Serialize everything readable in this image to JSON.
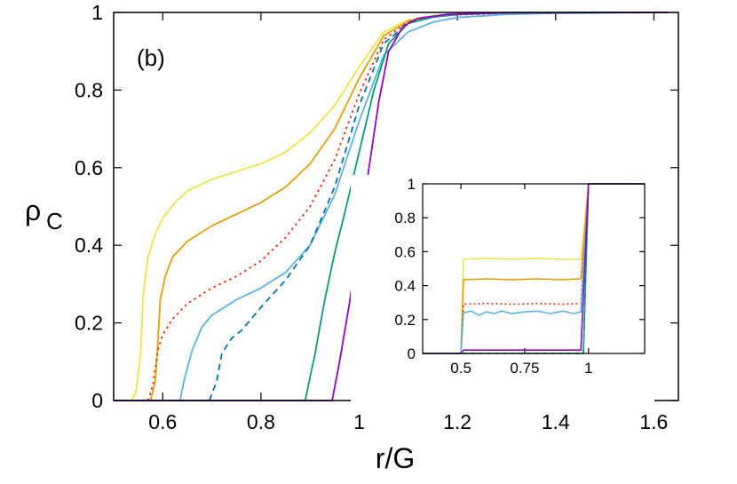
{
  "chart_data": [
    {
      "type": "line",
      "panel_label": "(b)",
      "xlabel": "r/G",
      "ylabel": "ρ",
      "ylabel_sub": "C",
      "xlim": [
        0.5,
        1.65
      ],
      "ylim": [
        0,
        1
      ],
      "xticks": [
        0.6,
        0.8,
        1,
        1.2,
        1.4,
        1.6
      ],
      "xtick_labels": [
        "0.6",
        "0.8",
        "1",
        "1.2",
        "1.4",
        "1.6"
      ],
      "yticks": [
        0,
        0.2,
        0.4,
        0.6,
        0.8,
        1
      ],
      "ytick_labels": [
        "0",
        "0.2",
        "0.4",
        "0.6",
        "0.8",
        "1"
      ],
      "grid": false,
      "series": [
        {
          "color": "#f0e442",
          "dash": "solid",
          "points": [
            [
              0.535,
              0
            ],
            [
              0.545,
              0.02
            ],
            [
              0.555,
              0.12
            ],
            [
              0.56,
              0.27
            ],
            [
              0.57,
              0.37
            ],
            [
              0.585,
              0.43
            ],
            [
              0.6,
              0.47
            ],
            [
              0.625,
              0.51
            ],
            [
              0.65,
              0.54
            ],
            [
              0.7,
              0.57
            ],
            [
              0.75,
              0.59
            ],
            [
              0.8,
              0.61
            ],
            [
              0.85,
              0.64
            ],
            [
              0.9,
              0.69
            ],
            [
              0.95,
              0.76
            ],
            [
              1.0,
              0.86
            ],
            [
              1.05,
              0.95
            ],
            [
              1.1,
              0.98
            ],
            [
              1.15,
              0.992
            ],
            [
              1.2,
              0.996
            ],
            [
              1.3,
              0.999
            ],
            [
              1.4,
              1
            ],
            [
              1.63,
              1
            ]
          ]
        },
        {
          "color": "#e69f00",
          "dash": "solid",
          "points": [
            [
              0.575,
              0
            ],
            [
              0.585,
              0.05
            ],
            [
              0.59,
              0.15
            ],
            [
              0.595,
              0.26
            ],
            [
              0.605,
              0.32
            ],
            [
              0.62,
              0.37
            ],
            [
              0.65,
              0.41
            ],
            [
              0.7,
              0.45
            ],
            [
              0.75,
              0.48
            ],
            [
              0.8,
              0.51
            ],
            [
              0.85,
              0.55
            ],
            [
              0.9,
              0.61
            ],
            [
              0.95,
              0.7
            ],
            [
              1.0,
              0.83
            ],
            [
              1.05,
              0.94
            ],
            [
              1.1,
              0.978
            ],
            [
              1.15,
              0.99
            ],
            [
              1.2,
              0.995
            ],
            [
              1.3,
              0.999
            ],
            [
              1.63,
              1
            ]
          ]
        },
        {
          "color": "#ff2200",
          "dash": "dotted",
          "points": [
            [
              0.57,
              0
            ],
            [
              0.58,
              0.04
            ],
            [
              0.59,
              0.13
            ],
            [
              0.6,
              0.17
            ],
            [
              0.62,
              0.21
            ],
            [
              0.65,
              0.25
            ],
            [
              0.7,
              0.29
            ],
            [
              0.75,
              0.32
            ],
            [
              0.8,
              0.36
            ],
            [
              0.85,
              0.42
            ],
            [
              0.9,
              0.5
            ],
            [
              0.95,
              0.62
            ],
            [
              1.0,
              0.79
            ],
            [
              1.05,
              0.93
            ],
            [
              1.1,
              0.975
            ],
            [
              1.15,
              0.988
            ],
            [
              1.2,
              0.994
            ],
            [
              1.3,
              0.998
            ],
            [
              1.63,
              1
            ]
          ]
        },
        {
          "color": "#56b4e9",
          "dash": "solid",
          "points": [
            [
              0.635,
              0
            ],
            [
              0.645,
              0.06
            ],
            [
              0.66,
              0.13
            ],
            [
              0.68,
              0.19
            ],
            [
              0.7,
              0.22
            ],
            [
              0.75,
              0.26
            ],
            [
              0.8,
              0.29
            ],
            [
              0.85,
              0.33
            ],
            [
              0.9,
              0.4
            ],
            [
              0.95,
              0.53
            ],
            [
              1.0,
              0.72
            ],
            [
              1.05,
              0.89
            ],
            [
              1.1,
              0.95
            ],
            [
              1.15,
              0.975
            ],
            [
              1.2,
              0.987
            ],
            [
              1.3,
              0.995
            ],
            [
              1.4,
              0.998
            ],
            [
              1.63,
              1
            ]
          ]
        },
        {
          "color": "#0072b2",
          "dash": "dashed",
          "points": [
            [
              0.695,
              0
            ],
            [
              0.71,
              0.05
            ],
            [
              0.72,
              0.12
            ],
            [
              0.74,
              0.16
            ],
            [
              0.76,
              0.18
            ],
            [
              0.8,
              0.24
            ],
            [
              0.85,
              0.31
            ],
            [
              0.9,
              0.4
            ],
            [
              0.95,
              0.55
            ],
            [
              1.0,
              0.76
            ],
            [
              1.05,
              0.92
            ],
            [
              1.1,
              0.972
            ],
            [
              1.15,
              0.988
            ],
            [
              1.2,
              0.995
            ],
            [
              1.3,
              0.999
            ],
            [
              1.63,
              1
            ]
          ]
        },
        {
          "color": "#009e73",
          "dash": "solid",
          "points": [
            [
              0.5,
              0
            ],
            [
              0.89,
              0
            ],
            [
              0.91,
              0.12
            ],
            [
              0.93,
              0.26
            ],
            [
              0.95,
              0.38
            ],
            [
              0.97,
              0.48
            ],
            [
              1.0,
              0.64
            ],
            [
              1.03,
              0.8
            ],
            [
              1.06,
              0.92
            ],
            [
              1.1,
              0.972
            ],
            [
              1.15,
              0.988
            ],
            [
              1.2,
              0.995
            ],
            [
              1.3,
              0.999
            ],
            [
              1.63,
              1
            ]
          ]
        },
        {
          "color": "#9400d3",
          "dash": "solid",
          "points": [
            [
              0.5,
              0
            ],
            [
              0.945,
              0
            ],
            [
              0.96,
              0.1
            ],
            [
              0.98,
              0.25
            ],
            [
              1.0,
              0.42
            ],
            [
              1.02,
              0.6
            ],
            [
              1.04,
              0.77
            ],
            [
              1.06,
              0.9
            ],
            [
              1.09,
              0.965
            ],
            [
              1.12,
              0.985
            ],
            [
              1.18,
              0.995
            ],
            [
              1.3,
              0.999
            ],
            [
              1.63,
              1
            ]
          ]
        }
      ]
    },
    {
      "type": "line",
      "role": "inset",
      "xlim": [
        0.35,
        1.22
      ],
      "ylim": [
        0,
        1
      ],
      "xticks": [
        0.5,
        0.75,
        1
      ],
      "xtick_labels": [
        "0.5",
        "0.75",
        "1"
      ],
      "yticks": [
        0,
        0.2,
        0.4,
        0.6,
        0.8,
        1
      ],
      "ytick_labels": [
        "0",
        "0.2",
        "0.4",
        "0.6",
        "0.8",
        "1"
      ],
      "grid": false,
      "series": [
        {
          "color": "#f0e442",
          "dash": "solid",
          "points": [
            [
              0.35,
              0
            ],
            [
              0.5,
              0
            ],
            [
              0.51,
              0.555
            ],
            [
              0.6,
              0.56
            ],
            [
              0.7,
              0.555
            ],
            [
              0.8,
              0.56
            ],
            [
              0.9,
              0.555
            ],
            [
              0.97,
              0.555
            ],
            [
              1.0,
              1
            ],
            [
              1.22,
              1
            ]
          ]
        },
        {
          "color": "#e69f00",
          "dash": "solid",
          "points": [
            [
              0.35,
              0
            ],
            [
              0.5,
              0
            ],
            [
              0.51,
              0.435
            ],
            [
              0.6,
              0.44
            ],
            [
              0.7,
              0.435
            ],
            [
              0.8,
              0.44
            ],
            [
              0.9,
              0.435
            ],
            [
              0.97,
              0.44
            ],
            [
              1.0,
              1
            ],
            [
              1.22,
              1
            ]
          ]
        },
        {
          "color": "#ff2200",
          "dash": "dotted",
          "points": [
            [
              0.35,
              0
            ],
            [
              0.5,
              0
            ],
            [
              0.51,
              0.29
            ],
            [
              0.6,
              0.295
            ],
            [
              0.7,
              0.29
            ],
            [
              0.8,
              0.295
            ],
            [
              0.9,
              0.29
            ],
            [
              0.97,
              0.295
            ],
            [
              1.0,
              1
            ],
            [
              1.22,
              1
            ]
          ]
        },
        {
          "color": "#56b4e9",
          "dash": "solid",
          "points": [
            [
              0.35,
              0
            ],
            [
              0.5,
              0
            ],
            [
              0.51,
              0.24
            ],
            [
              0.54,
              0.25
            ],
            [
              0.57,
              0.225
            ],
            [
              0.6,
              0.245
            ],
            [
              0.63,
              0.235
            ],
            [
              0.66,
              0.25
            ],
            [
              0.7,
              0.235
            ],
            [
              0.75,
              0.245
            ],
            [
              0.8,
              0.25
            ],
            [
              0.85,
              0.235
            ],
            [
              0.9,
              0.25
            ],
            [
              0.94,
              0.235
            ],
            [
              0.97,
              0.245
            ],
            [
              1.0,
              1
            ],
            [
              1.22,
              1
            ]
          ]
        },
        {
          "color": "#0072b2",
          "dash": "dashed",
          "points": [
            [
              0.35,
              0
            ],
            [
              0.98,
              0
            ],
            [
              1.0,
              1
            ],
            [
              1.22,
              1
            ]
          ]
        },
        {
          "color": "#009e73",
          "dash": "solid",
          "points": [
            [
              0.35,
              0
            ],
            [
              0.98,
              0
            ],
            [
              1.0,
              1
            ],
            [
              1.22,
              1
            ]
          ]
        },
        {
          "color": "#9400d3",
          "dash": "solid",
          "points": [
            [
              0.35,
              0
            ],
            [
              0.5,
              0
            ],
            [
              0.51,
              0.02
            ],
            [
              0.97,
              0.02
            ],
            [
              1.0,
              1
            ],
            [
              1.22,
              1
            ]
          ]
        }
      ]
    }
  ]
}
